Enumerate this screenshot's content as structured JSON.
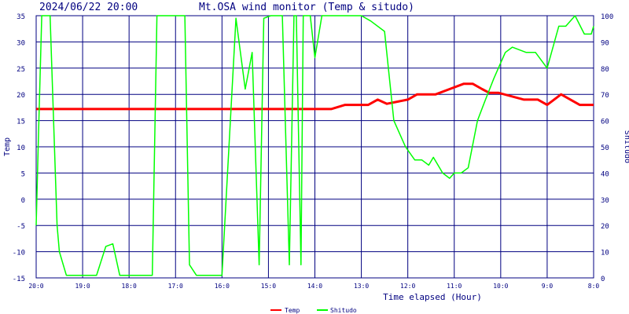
{
  "header": {
    "timestamp": "2024/06/22 20:00",
    "title": "Mt.OSA wind monitor (Temp & situdo)"
  },
  "colors": {
    "background": "#ffffff",
    "grid": "#000080",
    "temp": "#ff0000",
    "shitudo": "#00ff00",
    "text": "#000080"
  },
  "chart_data": {
    "type": "line",
    "title": "Mt.OSA wind monitor (Temp & situdo)",
    "xlabel": "Time elapsed (Hour)",
    "ylabel_left": "Temp",
    "ylabel_right": "Shitudo",
    "xlim": [
      0,
      12
    ],
    "ylim_left": [
      -15,
      35
    ],
    "ylim_right": [
      0,
      100
    ],
    "x_ticks": [
      0,
      1,
      2,
      3,
      4,
      5,
      6,
      7,
      8,
      9,
      10,
      11,
      12
    ],
    "x_tick_labels": [
      "20:0",
      "19:0",
      "18:0",
      "17:0",
      "16:0",
      "15:0",
      "14:0",
      "13:0",
      "12:0",
      "11:0",
      "10:0",
      "9:0",
      "8:0"
    ],
    "y_left_ticks": [
      35,
      30,
      25,
      20,
      15,
      10,
      5,
      0,
      -5,
      -10,
      -15
    ],
    "y_right_ticks": [
      100,
      90,
      80,
      70,
      60,
      50,
      40,
      30,
      20,
      10,
      0
    ],
    "grid": true,
    "legend": [
      "Temp",
      "Shitudo"
    ],
    "series": [
      {
        "name": "Temp",
        "axis": "left",
        "x": [
          0,
          1,
          2,
          3,
          4,
          5,
          6,
          6.35,
          6.65,
          7.0,
          7.15,
          7.35,
          7.55,
          8.0,
          8.2,
          8.6,
          8.9,
          9.2,
          9.4,
          9.6,
          9.75,
          9.95,
          10.5,
          10.8,
          11.0,
          11.3,
          11.5,
          11.7,
          12.0
        ],
        "values": [
          17.2,
          17.2,
          17.2,
          17.2,
          17.2,
          17.2,
          17.2,
          17.2,
          18.0,
          18.0,
          18.0,
          19.0,
          18.2,
          19.0,
          20.0,
          20.0,
          21.0,
          22.0,
          22.0,
          21.0,
          20.3,
          20.3,
          19.0,
          19.0,
          18.0,
          20.0,
          19.0,
          18.0,
          18.0
        ]
      },
      {
        "name": "Shitudo",
        "axis": "right",
        "x": [
          0,
          0.05,
          0.12,
          0.3,
          0.45,
          0.5,
          0.65,
          1.0,
          1.3,
          1.5,
          1.65,
          1.8,
          2.0,
          2.5,
          2.6,
          2.75,
          3.0,
          3.2,
          3.3,
          3.45,
          3.6,
          3.75,
          3.8,
          4.0,
          4.3,
          4.5,
          4.65,
          4.8,
          4.9,
          5.05,
          5.1,
          5.3,
          5.45,
          5.55,
          5.6,
          5.7,
          5.75,
          5.85,
          5.9,
          6.0,
          6.15,
          6.3,
          6.5,
          6.7,
          6.9,
          7.0,
          7.2,
          7.5,
          7.7,
          7.95,
          8.15,
          8.3,
          8.45,
          8.55,
          8.75,
          8.9,
          9.0,
          9.15,
          9.3,
          9.5,
          9.65,
          9.85,
          10.0,
          10.1,
          10.25,
          10.55,
          10.75,
          11.0,
          11.25,
          11.4,
          11.6,
          11.8,
          11.95,
          12.0
        ],
        "values": [
          20,
          55,
          100,
          100,
          20,
          10,
          1,
          1,
          1,
          12,
          13,
          1,
          1,
          1,
          100,
          100,
          100,
          100,
          5,
          1,
          1,
          1,
          1,
          1,
          99,
          72,
          86,
          5,
          99,
          100,
          100,
          100,
          5,
          100,
          100,
          5,
          100,
          100,
          100,
          84,
          100,
          100,
          100,
          100,
          100,
          100,
          98,
          94,
          60,
          50,
          45,
          45,
          43,
          46,
          40,
          38,
          40,
          40,
          42,
          60,
          67,
          76,
          82,
          86,
          88,
          86,
          86,
          80,
          96,
          96,
          100,
          93,
          93,
          96
        ]
      }
    ]
  }
}
